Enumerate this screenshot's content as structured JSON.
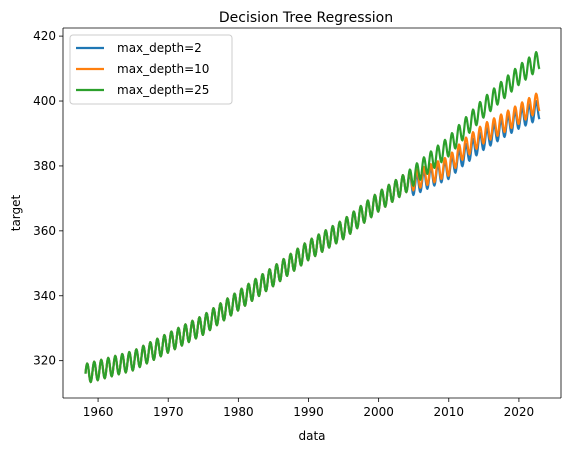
{
  "chart_data": {
    "type": "line",
    "title": "Decision Tree Regression",
    "xlabel": "data",
    "ylabel": "target",
    "xlim": [
      1955,
      2026
    ],
    "ylim": [
      308.5,
      422.5
    ],
    "xticks": [
      1960,
      1970,
      1980,
      1990,
      2000,
      2010,
      2020
    ],
    "yticks": [
      320,
      340,
      360,
      380,
      400,
      420
    ],
    "grid": false,
    "legend_position": "top-left",
    "series": [
      {
        "name": "max_depth=2",
        "color": "#1f77b4",
        "x": [
          1958.2,
          1960,
          1965,
          1970,
          1975,
          1980,
          1985,
          1990,
          1995,
          2000,
          2004,
          2005,
          2008,
          2010,
          2012,
          2015,
          2018,
          2020,
          2023
        ],
        "y": [
          316,
          317,
          320,
          325.5,
          331,
          338.5,
          346,
          354,
          360.5,
          369,
          375,
          374,
          377,
          379,
          383,
          388,
          392,
          394.5,
          397.5
        ],
        "seasonal_amplitude": 3
      },
      {
        "name": "max_depth=10",
        "color": "#ff7f0e",
        "x": [
          1958.2,
          1960,
          1965,
          1970,
          1975,
          1980,
          1985,
          1990,
          1995,
          2000,
          2004,
          2005,
          2008,
          2010,
          2012,
          2015,
          2018,
          2020,
          2023
        ],
        "y": [
          316,
          317,
          320,
          325.5,
          331,
          338.5,
          346,
          354,
          360.5,
          369,
          375,
          375.5,
          378,
          380,
          385,
          390,
          393.5,
          396,
          400
        ],
        "seasonal_amplitude": 3
      },
      {
        "name": "max_depth=25",
        "color": "#2ca02c",
        "x": [
          1958.2,
          1960,
          1965,
          1970,
          1975,
          1980,
          1985,
          1990,
          1995,
          2000,
          2004,
          2005,
          2008,
          2010,
          2012,
          2015,
          2018,
          2020,
          2023
        ],
        "y": [
          316,
          317,
          320,
          325.5,
          331,
          338.5,
          346,
          354,
          360.5,
          369,
          375,
          377,
          382.5,
          386,
          391,
          398,
          404,
          408,
          413
        ],
        "seasonal_amplitude": 3
      }
    ]
  }
}
